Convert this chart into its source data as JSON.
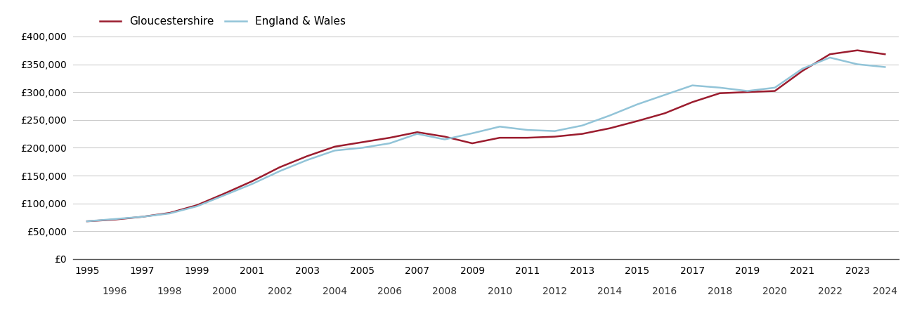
{
  "gloucestershire": {
    "years": [
      1995,
      1996,
      1997,
      1998,
      1999,
      2000,
      2001,
      2002,
      2003,
      2004,
      2005,
      2006,
      2007,
      2008,
      2009,
      2010,
      2011,
      2012,
      2013,
      2014,
      2015,
      2016,
      2017,
      2018,
      2019,
      2020,
      2021,
      2022,
      2023,
      2024
    ],
    "values": [
      68000,
      71000,
      76000,
      83000,
      97000,
      118000,
      140000,
      165000,
      185000,
      202000,
      210000,
      218000,
      228000,
      220000,
      208000,
      218000,
      218000,
      220000,
      225000,
      235000,
      248000,
      262000,
      282000,
      298000,
      300000,
      302000,
      338000,
      368000,
      375000,
      368000
    ]
  },
  "england_wales": {
    "years": [
      1995,
      1996,
      1997,
      1998,
      1999,
      2000,
      2001,
      2002,
      2003,
      2004,
      2005,
      2006,
      2007,
      2008,
      2009,
      2010,
      2011,
      2012,
      2013,
      2014,
      2015,
      2016,
      2017,
      2018,
      2019,
      2020,
      2021,
      2022,
      2023,
      2024
    ],
    "values": [
      68000,
      72000,
      76000,
      82000,
      95000,
      115000,
      135000,
      158000,
      178000,
      195000,
      200000,
      208000,
      225000,
      215000,
      226000,
      238000,
      232000,
      230000,
      240000,
      258000,
      278000,
      295000,
      312000,
      308000,
      302000,
      308000,
      342000,
      362000,
      350000,
      345000
    ]
  },
  "gloucestershire_color": "#9b1c2e",
  "england_wales_color": "#92c4d8",
  "line_width": 1.8,
  "ylim": [
    0,
    420000
  ],
  "yticks": [
    0,
    50000,
    100000,
    150000,
    200000,
    250000,
    300000,
    350000,
    400000
  ],
  "xlim": [
    1994.5,
    2024.5
  ],
  "background_color": "#ffffff",
  "grid_color": "#cccccc",
  "legend_labels": [
    "Gloucestershire",
    "England & Wales"
  ],
  "odd_years": [
    1995,
    1997,
    1999,
    2001,
    2003,
    2005,
    2007,
    2009,
    2011,
    2013,
    2015,
    2017,
    2019,
    2021,
    2023
  ],
  "even_years": [
    1996,
    1998,
    2000,
    2002,
    2004,
    2006,
    2008,
    2010,
    2012,
    2014,
    2016,
    2018,
    2020,
    2022,
    2024
  ]
}
